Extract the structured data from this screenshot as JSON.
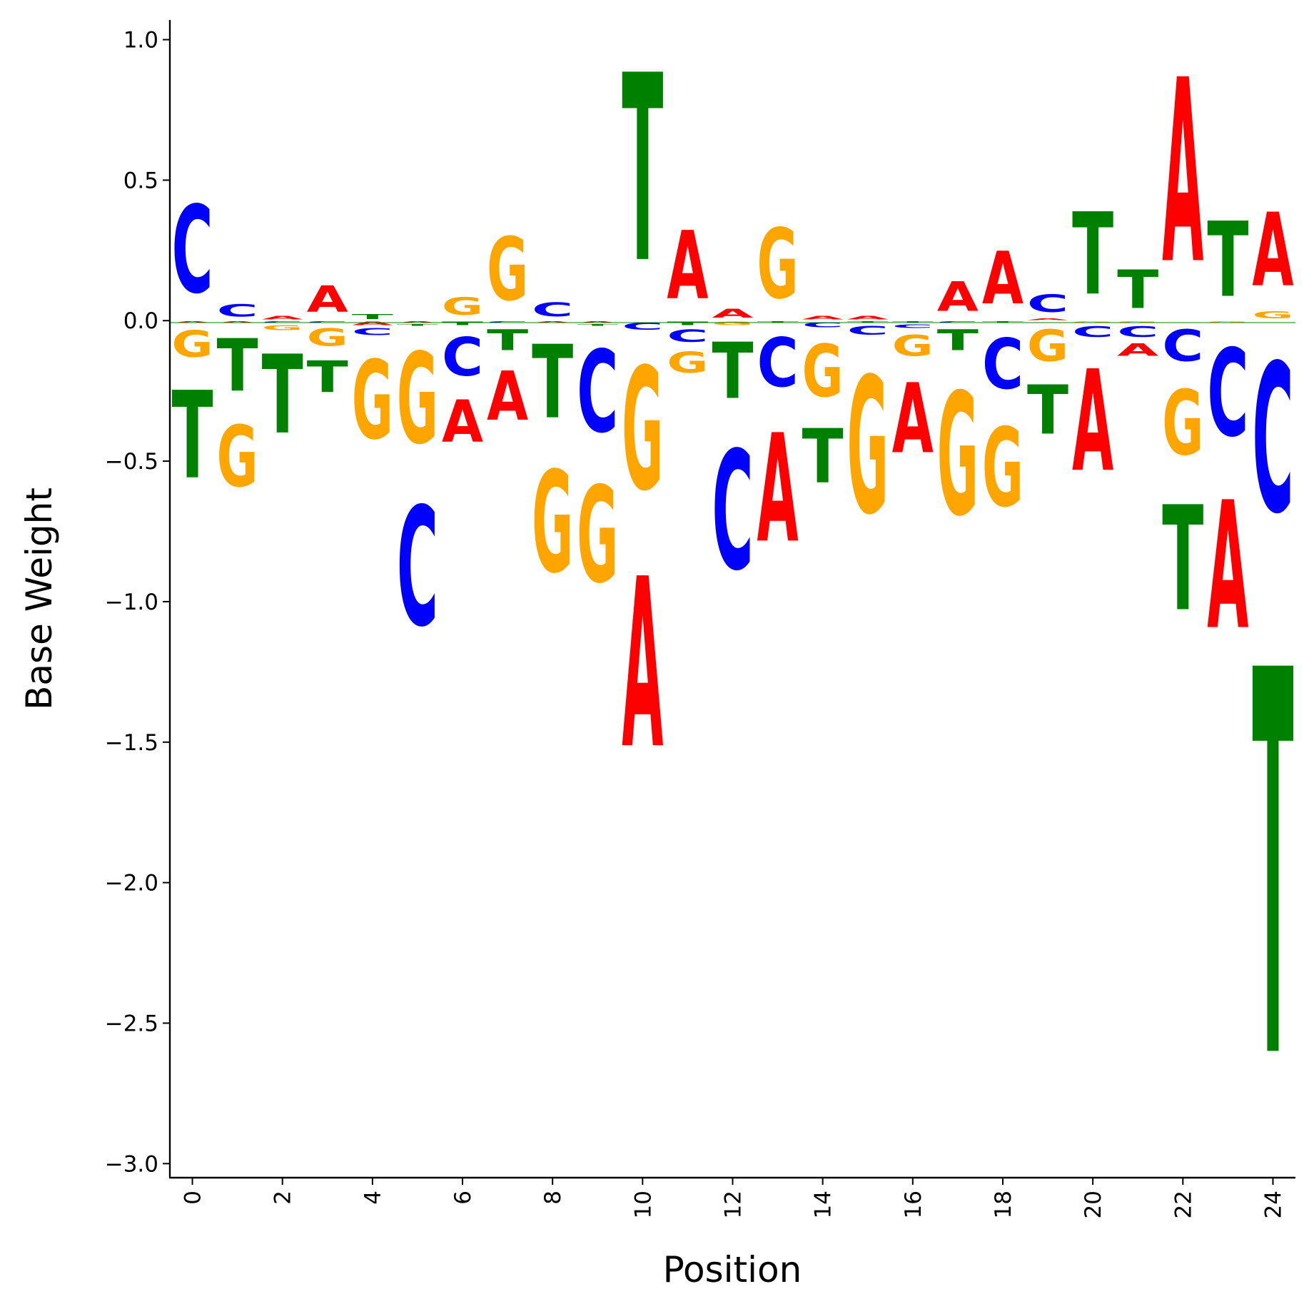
{
  "chart_data": {
    "type": "sequence-logo",
    "xlabel": "Position",
    "ylabel": "Base Weight",
    "ylim": [
      -3.05,
      1.07
    ],
    "xlim": [
      -0.5,
      24.5
    ],
    "x_ticks": [
      0,
      2,
      4,
      6,
      8,
      10,
      12,
      14,
      16,
      18,
      20,
      22,
      24
    ],
    "y_ticks": [
      1.0,
      0.5,
      0.0,
      -0.5,
      -1.0,
      -1.5,
      -2.0,
      -2.5,
      -3.0
    ],
    "y_tick_labels": [
      "1.0",
      "0.5",
      "0.0",
      "−0.5",
      "−1.0",
      "−1.5",
      "−2.0",
      "−2.5",
      "−3.0"
    ],
    "grid": false,
    "colors": {
      "A": "#ff0000",
      "C": "#0000ff",
      "G": "#ffa500",
      "T": "#008000"
    },
    "bases": [
      "A",
      "C",
      "G",
      "T"
    ],
    "weights": [
      [
        -0.01,
        0.5,
        -0.15,
        -0.5
      ],
      [
        -0.01,
        0.07,
        -0.35,
        -0.3
      ],
      [
        0.02,
        -0.01,
        -0.03,
        -0.45
      ],
      [
        0.15,
        -0.01,
        -0.1,
        -0.18
      ],
      [
        -0.02,
        -0.04,
        -0.45,
        0.03
      ],
      [
        -0.01,
        -0.68,
        -0.52,
        -0.01
      ],
      [
        -0.24,
        -0.22,
        0.1,
        -0.02
      ],
      [
        -0.28,
        -0.01,
        0.36,
        -0.12
      ],
      [
        -0.01,
        0.08,
        -0.58,
        -0.42
      ],
      [
        -0.01,
        -0.47,
        -0.55,
        -0.01
      ],
      [
        -0.97,
        -0.04,
        -0.7,
        1.07
      ],
      [
        0.39,
        -0.07,
        -0.12,
        -0.02
      ],
      [
        0.05,
        -0.68,
        -0.02,
        -0.32
      ],
      [
        -0.62,
        -0.28,
        0.4,
        -0.01
      ],
      [
        0.02,
        -0.03,
        -0.3,
        -0.31
      ],
      [
        0.02,
        -0.05,
        -0.78,
        -0.01
      ],
      [
        -0.4,
        -0.02,
        -0.12,
        -0.01
      ],
      [
        0.17,
        -0.01,
        -0.7,
        -0.12
      ],
      [
        0.3,
        -0.29,
        -0.45,
        -0.01
      ],
      [
        0.01,
        0.1,
        -0.18,
        -0.28
      ],
      [
        -0.58,
        -0.06,
        -0.01,
        0.47
      ],
      [
        -0.07,
        -0.06,
        -0.01,
        0.22
      ],
      [
        1.05,
        -0.18,
        -0.37,
        -0.6
      ],
      [
        -0.73,
        -0.5,
        -0.01,
        0.43
      ],
      [
        0.42,
        -0.85,
        0.04,
        -2.2
      ]
    ]
  }
}
